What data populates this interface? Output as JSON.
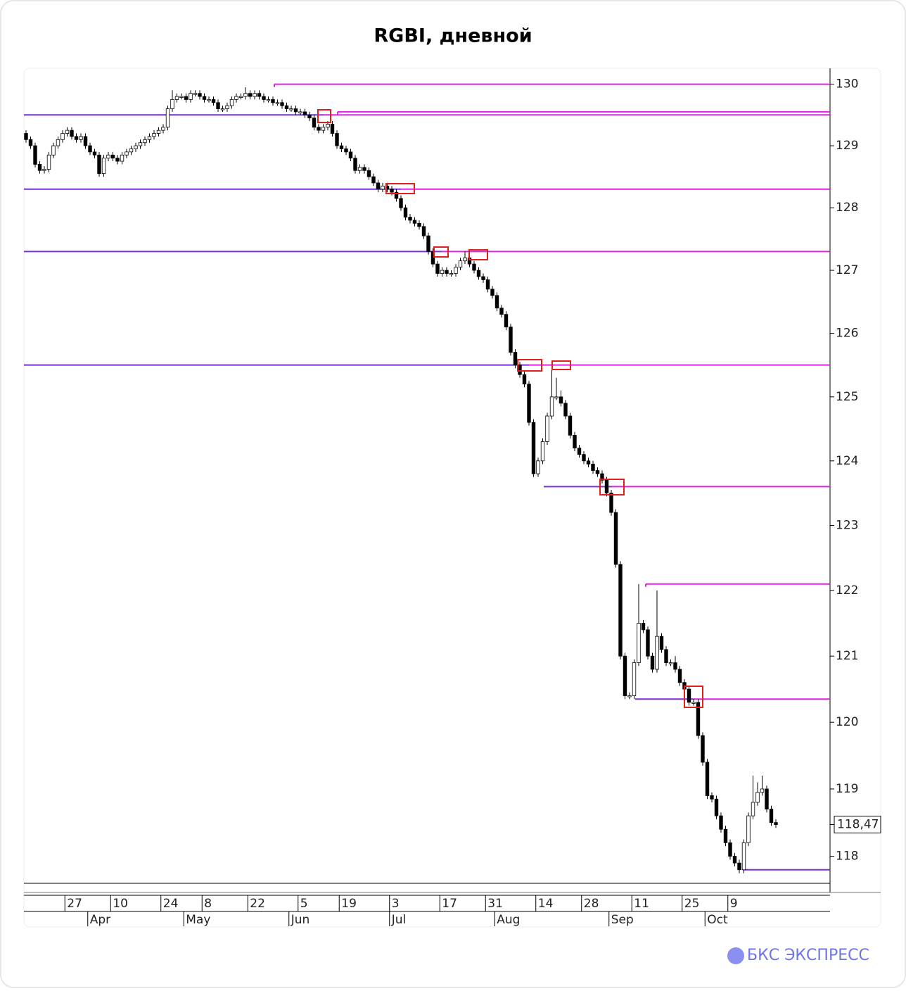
{
  "chart_data": {
    "type": "candlestick",
    "title": "RGBI, дневной",
    "brand": "БКС ЭКСПРЕСС",
    "log_scale": true,
    "ylim": [
      117.6,
      130.26
    ],
    "yticks": [
      118,
      119,
      120,
      121,
      122,
      123,
      124,
      125,
      126,
      127,
      128,
      129,
      130
    ],
    "up_color": "#ffffff",
    "down_color": "#000000",
    "level_color": "#e020e0",
    "level_base_color": "#7b2fd6",
    "levels": [
      130.0,
      129.5,
      129.55,
      128.3,
      127.3,
      125.5,
      123.6,
      122.1,
      120.35,
      117.8
    ],
    "last_price": {
      "value": 118.47,
      "label": "118,47"
    },
    "categories": [
      null,
      null,
      null,
      null,
      null,
      null,
      null,
      null,
      null,
      "27",
      null,
      null,
      null,
      null,
      null,
      null,
      null,
      null,
      null,
      "10",
      null,
      null,
      null,
      null,
      null,
      null,
      null,
      null,
      null,
      null,
      "24",
      null,
      null,
      null,
      null,
      null,
      null,
      null,
      null,
      "8",
      null,
      null,
      null,
      null,
      null,
      null,
      null,
      null,
      null,
      "22",
      null,
      null,
      null,
      null,
      null,
      null,
      null,
      null,
      null,
      null,
      "5",
      null,
      null,
      null,
      null,
      null,
      null,
      null,
      null,
      "19",
      null,
      null,
      null,
      null,
      null,
      null,
      null,
      null,
      null,
      null,
      "3",
      null,
      null,
      null,
      null,
      null,
      null,
      null,
      null,
      null,
      null,
      "17",
      null,
      null,
      null,
      null,
      null,
      null,
      null,
      null,
      null,
      "31",
      null,
      null,
      null,
      null,
      null,
      null,
      null,
      null,
      null,
      null,
      "14",
      null,
      null,
      null,
      null,
      null,
      null,
      null,
      null,
      null,
      "28",
      null,
      null,
      null,
      null,
      null,
      null,
      null,
      null,
      null,
      null,
      "11",
      null,
      null,
      null,
      null,
      null,
      null,
      null,
      null,
      null,
      null,
      "25",
      null,
      null,
      null,
      null,
      null,
      null,
      null,
      null,
      null,
      "9",
      null,
      null,
      null,
      null,
      null,
      null,
      null,
      null,
      null,
      null
    ],
    "months": [
      null,
      null,
      null,
      null,
      null,
      null,
      null,
      null,
      null,
      null,
      null,
      null,
      null,
      null,
      "Apr",
      null,
      null,
      null,
      null,
      null,
      null,
      null,
      null,
      null,
      null,
      null,
      null,
      null,
      null,
      null,
      null,
      null,
      null,
      null,
      null,
      "May",
      null,
      null,
      null,
      null,
      null,
      null,
      null,
      null,
      null,
      null,
      null,
      null,
      null,
      null,
      null,
      null,
      null,
      null,
      null,
      null,
      null,
      null,
      "Jun",
      null,
      null,
      null,
      null,
      null,
      null,
      null,
      null,
      null,
      null,
      null,
      null,
      null,
      null,
      null,
      null,
      null,
      null,
      null,
      null,
      null,
      "Jul",
      null,
      null,
      null,
      null,
      null,
      null,
      null,
      null,
      null,
      null,
      null,
      null,
      null,
      null,
      null,
      null,
      null,
      null,
      null,
      null,
      null,
      null,
      "Aug",
      null,
      null,
      null,
      null,
      null,
      null,
      null,
      null,
      null,
      null,
      null,
      null,
      null,
      null,
      null,
      null,
      null,
      null,
      null,
      null,
      null,
      null,
      null,
      null,
      "Sep",
      null,
      null,
      null,
      null,
      null,
      null,
      null,
      null,
      null,
      null,
      null,
      null,
      null,
      null,
      null,
      null,
      null,
      null,
      null,
      null,
      "Oct",
      null,
      null,
      null,
      null,
      null,
      null,
      null,
      null,
      null,
      null,
      null,
      null,
      null,
      null,
      null
    ],
    "open": [
      129.2,
      129.1,
      129.0,
      128.7,
      128.6,
      128.62,
      128.85,
      129.0,
      129.1,
      129.2,
      129.25,
      129.15,
      129.1,
      129.15,
      129.0,
      128.9,
      128.85,
      128.55,
      128.8,
      128.85,
      128.8,
      128.75,
      128.85,
      128.9,
      128.95,
      129.0,
      129.05,
      129.1,
      129.15,
      129.2,
      129.25,
      129.3,
      129.6,
      129.75,
      129.8,
      129.8,
      129.75,
      129.85,
      129.85,
      129.8,
      129.75,
      129.75,
      129.7,
      129.6,
      129.6,
      129.65,
      129.75,
      129.8,
      129.8,
      129.85,
      129.8,
      129.85,
      129.8,
      129.75,
      129.75,
      129.7,
      129.7,
      129.65,
      129.6,
      129.6,
      129.55,
      129.55,
      129.5,
      129.45,
      129.3,
      129.25,
      129.3,
      129.35,
      129.2,
      129.0,
      128.95,
      128.9,
      128.8,
      128.6,
      128.65,
      128.6,
      128.5,
      128.4,
      128.3,
      128.35,
      128.3,
      128.25,
      128.15,
      128.0,
      127.85,
      127.8,
      127.75,
      127.7,
      127.55,
      127.3,
      127.1,
      126.95,
      127.0,
      126.95,
      126.95,
      127.05,
      127.15,
      127.2,
      127.1,
      127.0,
      126.9,
      126.85,
      126.7,
      126.6,
      126.4,
      126.3,
      126.1,
      125.7,
      125.5,
      125.35,
      125.2,
      124.6,
      123.8,
      124.0,
      124.3,
      124.7,
      125.0,
      125.0,
      124.9,
      124.7,
      124.4,
      124.2,
      124.1,
      124.0,
      123.95,
      123.85,
      123.8,
      123.7,
      123.5,
      123.2,
      122.4,
      121.0,
      120.4,
      120.4,
      120.9,
      121.5,
      121.4,
      121.0,
      120.8,
      121.3,
      121.1,
      120.9,
      120.9,
      120.8,
      120.6,
      120.5,
      120.3,
      120.3,
      119.8,
      119.4,
      118.9,
      118.85,
      118.6,
      118.4,
      118.2,
      118.0,
      117.9,
      117.8,
      118.2,
      118.6,
      118.8,
      118.95,
      119.0,
      118.7,
      118.5
    ],
    "high": [
      129.25,
      129.15,
      129.05,
      128.75,
      128.67,
      128.9,
      129.05,
      129.15,
      129.25,
      129.3,
      129.3,
      129.2,
      129.2,
      129.2,
      129.05,
      128.95,
      128.9,
      128.85,
      128.9,
      128.9,
      128.85,
      128.9,
      128.95,
      129.0,
      129.05,
      129.1,
      129.15,
      129.2,
      129.25,
      129.3,
      129.35,
      129.65,
      129.9,
      129.85,
      129.85,
      129.85,
      129.9,
      129.9,
      129.9,
      129.85,
      129.8,
      129.8,
      129.75,
      129.65,
      129.7,
      129.8,
      129.85,
      129.85,
      129.95,
      129.9,
      129.9,
      129.9,
      129.85,
      129.8,
      129.8,
      129.75,
      129.75,
      129.7,
      129.65,
      129.65,
      129.6,
      129.6,
      129.55,
      129.5,
      129.35,
      129.35,
      129.4,
      129.4,
      129.25,
      129.05,
      129.0,
      128.95,
      128.85,
      128.7,
      128.7,
      128.65,
      128.55,
      128.45,
      128.4,
      128.4,
      128.35,
      128.3,
      128.2,
      128.05,
      127.9,
      127.85,
      127.8,
      127.75,
      127.6,
      127.35,
      127.15,
      127.05,
      127.05,
      127.0,
      127.1,
      127.2,
      127.3,
      127.25,
      127.15,
      127.05,
      126.95,
      126.9,
      126.75,
      126.65,
      126.45,
      126.35,
      126.15,
      125.75,
      125.55,
      125.4,
      125.25,
      124.65,
      124.05,
      124.35,
      124.75,
      125.5,
      125.3,
      125.1,
      124.95,
      124.75,
      124.45,
      124.25,
      124.15,
      124.05,
      124.0,
      123.9,
      123.85,
      123.75,
      123.55,
      123.25,
      122.45,
      121.05,
      120.45,
      120.95,
      122.1,
      121.55,
      121.45,
      121.05,
      122.0,
      121.35,
      121.15,
      120.95,
      121.0,
      120.85,
      120.65,
      120.55,
      120.35,
      120.35,
      119.85,
      119.45,
      118.95,
      118.9,
      118.65,
      118.45,
      118.25,
      118.05,
      117.95,
      118.25,
      118.65,
      119.2,
      119.1,
      119.2,
      119.05,
      118.75,
      118.55
    ],
    "low": [
      129.05,
      128.95,
      128.65,
      128.55,
      128.55,
      128.57,
      128.8,
      128.95,
      129.05,
      129.15,
      129.1,
      129.05,
      129.05,
      128.95,
      128.85,
      128.8,
      128.5,
      128.5,
      128.75,
      128.75,
      128.7,
      128.7,
      128.8,
      128.85,
      128.9,
      128.95,
      129.0,
      129.05,
      129.1,
      129.15,
      129.2,
      129.25,
      129.55,
      129.7,
      129.75,
      129.7,
      129.7,
      129.8,
      129.75,
      129.7,
      129.7,
      129.65,
      129.55,
      129.55,
      129.55,
      129.6,
      129.7,
      129.75,
      129.75,
      129.75,
      129.75,
      129.75,
      129.7,
      129.7,
      129.65,
      129.65,
      129.6,
      129.55,
      129.55,
      129.5,
      129.5,
      129.45,
      129.4,
      129.25,
      129.2,
      129.2,
      129.25,
      129.15,
      128.95,
      128.9,
      128.85,
      128.75,
      128.55,
      128.55,
      128.55,
      128.45,
      128.35,
      128.25,
      128.25,
      128.25,
      128.2,
      128.1,
      127.95,
      127.8,
      127.75,
      127.7,
      127.65,
      127.5,
      127.25,
      127.05,
      126.9,
      126.9,
      126.9,
      126.9,
      126.9,
      127.0,
      127.1,
      127.05,
      126.95,
      126.85,
      126.8,
      126.65,
      126.55,
      126.35,
      126.25,
      126.05,
      125.65,
      125.45,
      125.3,
      125.15,
      124.55,
      123.75,
      123.75,
      123.95,
      124.25,
      124.65,
      124.95,
      124.85,
      124.65,
      124.35,
      124.15,
      124.05,
      123.95,
      123.9,
      123.8,
      123.75,
      123.65,
      123.45,
      123.15,
      122.35,
      120.95,
      120.35,
      120.35,
      120.35,
      120.85,
      121.35,
      120.95,
      120.75,
      120.75,
      121.05,
      120.85,
      120.85,
      120.75,
      120.55,
      120.45,
      120.25,
      120.25,
      119.75,
      119.35,
      118.85,
      118.8,
      118.55,
      118.35,
      118.15,
      117.95,
      117.85,
      117.75,
      117.75,
      118.15,
      118.55,
      118.75,
      118.9,
      118.65,
      118.45,
      118.42
    ],
    "close": [
      129.1,
      129.0,
      128.7,
      128.6,
      128.62,
      128.85,
      129.0,
      129.1,
      129.2,
      129.25,
      129.15,
      129.1,
      129.15,
      129.0,
      128.9,
      128.85,
      128.55,
      128.8,
      128.85,
      128.8,
      128.75,
      128.85,
      128.9,
      128.95,
      129.0,
      129.05,
      129.1,
      129.15,
      129.2,
      129.25,
      129.3,
      129.6,
      129.75,
      129.8,
      129.8,
      129.75,
      129.85,
      129.85,
      129.8,
      129.75,
      129.75,
      129.7,
      129.6,
      129.6,
      129.65,
      129.75,
      129.8,
      129.8,
      129.85,
      129.8,
      129.85,
      129.8,
      129.75,
      129.75,
      129.7,
      129.7,
      129.65,
      129.6,
      129.6,
      129.55,
      129.55,
      129.5,
      129.45,
      129.3,
      129.25,
      129.3,
      129.35,
      129.2,
      129.0,
      128.95,
      128.9,
      128.8,
      128.6,
      128.65,
      128.6,
      128.5,
      128.4,
      128.3,
      128.35,
      128.3,
      128.25,
      128.15,
      128.0,
      127.85,
      127.8,
      127.75,
      127.7,
      127.55,
      127.3,
      127.1,
      126.95,
      127.0,
      126.95,
      126.95,
      127.05,
      127.15,
      127.2,
      127.1,
      127.0,
      126.9,
      126.85,
      126.7,
      126.6,
      126.4,
      126.3,
      126.1,
      125.7,
      125.5,
      125.35,
      125.2,
      124.6,
      123.8,
      124.0,
      124.3,
      124.7,
      125.0,
      125.0,
      124.9,
      124.7,
      124.4,
      124.2,
      124.1,
      124.0,
      123.95,
      123.85,
      123.8,
      123.7,
      123.5,
      123.2,
      122.4,
      121.0,
      120.4,
      120.4,
      120.9,
      121.5,
      121.4,
      121.0,
      120.8,
      121.3,
      121.1,
      120.9,
      120.9,
      120.8,
      120.6,
      120.5,
      120.3,
      120.3,
      119.8,
      119.4,
      118.9,
      118.85,
      118.6,
      118.4,
      118.2,
      118.0,
      117.9,
      117.8,
      118.2,
      118.6,
      118.8,
      118.95,
      119.0,
      118.7,
      118.5,
      118.47
    ]
  }
}
